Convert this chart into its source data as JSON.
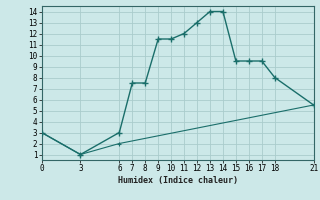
{
  "xlabel": "Humidex (Indice chaleur)",
  "bg_color": "#cce8e8",
  "grid_color": "#aacccc",
  "line_color": "#1a6e6a",
  "line1_x": [
    0,
    3,
    6,
    7,
    8,
    9,
    10,
    11,
    12,
    13,
    14,
    15,
    16,
    17,
    18,
    21
  ],
  "line1_y": [
    3,
    1,
    3,
    7.5,
    7.5,
    11.5,
    11.5,
    12,
    13,
    14,
    14,
    9.5,
    9.5,
    9.5,
    8,
    5.5
  ],
  "line2_x": [
    0,
    3,
    6,
    21
  ],
  "line2_y": [
    3,
    1,
    2.0,
    5.5
  ],
  "xlim": [
    0,
    21
  ],
  "ylim": [
    1,
    14
  ],
  "xticks": [
    0,
    3,
    6,
    7,
    8,
    9,
    10,
    11,
    12,
    13,
    14,
    15,
    16,
    17,
    18,
    21
  ],
  "yticks": [
    1,
    2,
    3,
    4,
    5,
    6,
    7,
    8,
    9,
    10,
    11,
    12,
    13,
    14
  ],
  "xlabel_fontsize": 6,
  "tick_fontsize": 5.5
}
